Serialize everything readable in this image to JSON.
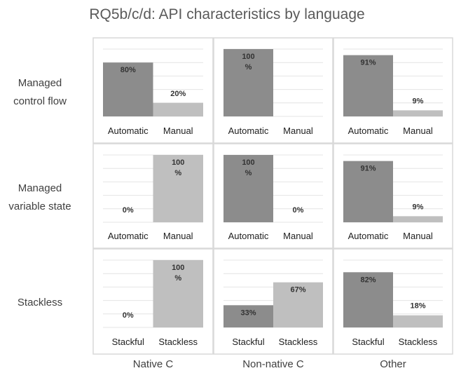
{
  "title": "RQ5b/c/d: API characteristics by language",
  "columns": [
    "Native C",
    "Non-native C",
    "Other"
  ],
  "rows": [
    {
      "label_lines": [
        "Managed",
        "control flow"
      ]
    },
    {
      "label_lines": [
        "Managed",
        "variable state"
      ]
    },
    {
      "label_lines": [
        "Stackless"
      ]
    }
  ],
  "chart_data": {
    "type": "bar",
    "title": "RQ5b/c/d: API characteristics by language",
    "ylim": [
      0,
      100
    ],
    "grid": true,
    "colors": {
      "first": "#8c8c8c",
      "second": "#bfbfbf"
    },
    "panels": [
      {
        "row": 0,
        "col": 0,
        "categories": [
          "Automatic",
          "Manual"
        ],
        "values": [
          80,
          20
        ],
        "labels": [
          [
            "80%"
          ],
          [
            "20%"
          ]
        ]
      },
      {
        "row": 0,
        "col": 1,
        "categories": [
          "Automatic",
          "Manual"
        ],
        "values": [
          100,
          0
        ],
        "labels": [
          [
            "100",
            "%"
          ],
          [
            ""
          ]
        ]
      },
      {
        "row": 0,
        "col": 2,
        "categories": [
          "Automatic",
          "Manual"
        ],
        "values": [
          91,
          9
        ],
        "labels": [
          [
            "91%"
          ],
          [
            "9%"
          ]
        ]
      },
      {
        "row": 1,
        "col": 0,
        "categories": [
          "Automatic",
          "Manual"
        ],
        "values": [
          0,
          100
        ],
        "labels": [
          [
            "0%"
          ],
          [
            "100",
            "%"
          ]
        ]
      },
      {
        "row": 1,
        "col": 1,
        "categories": [
          "Automatic",
          "Manual"
        ],
        "values": [
          100,
          0
        ],
        "labels": [
          [
            "100",
            "%"
          ],
          [
            "0%"
          ]
        ]
      },
      {
        "row": 1,
        "col": 2,
        "categories": [
          "Automatic",
          "Manual"
        ],
        "values": [
          91,
          9
        ],
        "labels": [
          [
            "91%"
          ],
          [
            "9%"
          ]
        ]
      },
      {
        "row": 2,
        "col": 0,
        "categories": [
          "Stackful",
          "Stackless"
        ],
        "values": [
          0,
          100
        ],
        "labels": [
          [
            "0%"
          ],
          [
            "100",
            "%"
          ]
        ]
      },
      {
        "row": 2,
        "col": 1,
        "categories": [
          "Stackful",
          "Stackless"
        ],
        "values": [
          33,
          67
        ],
        "labels": [
          [
            "33%"
          ],
          [
            "67%"
          ]
        ]
      },
      {
        "row": 2,
        "col": 2,
        "categories": [
          "Stackful",
          "Stackless"
        ],
        "values": [
          82,
          18
        ],
        "labels": [
          [
            "82%"
          ],
          [
            "18%"
          ]
        ]
      }
    ]
  }
}
